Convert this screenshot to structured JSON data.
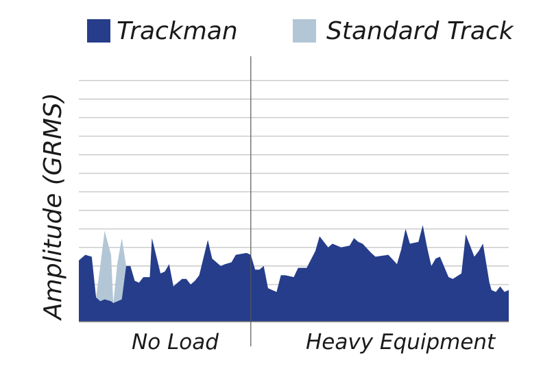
{
  "colors": {
    "trackman": "#253d8a",
    "standard": "#b3c6d6",
    "grid": "#c8c8c8",
    "divider": "#555555"
  },
  "chart_data": {
    "type": "area",
    "title": "",
    "xlabel": "",
    "ylabel": "Amplitude (GRMS)",
    "legend": "top",
    "grid": true,
    "y_gridlines": 13,
    "sections": [
      "No Load",
      "Heavy Equipment"
    ],
    "divider_after_index": 33,
    "series": [
      {
        "name": "Trackman",
        "x": [
          0,
          1.5,
          3,
          4,
          5,
          6,
          7.5,
          8,
          9,
          10,
          11,
          12,
          13,
          14,
          15,
          16.5,
          17,
          19,
          20,
          21,
          22,
          24,
          25,
          26,
          27,
          28,
          30,
          31,
          33,
          34,
          35.5,
          36.5,
          39,
          40,
          41,
          42,
          43,
          44,
          46,
          47,
          48,
          50,
          51,
          53,
          55,
          56,
          57,
          58,
          59,
          61,
          63,
          64,
          65,
          66,
          68,
          69,
          72,
          74,
          75,
          76,
          77,
          79,
          80,
          81,
          82,
          83,
          84,
          86,
          87,
          89,
          90,
          92,
          93,
          94,
          95.5,
          96,
          97,
          98,
          99,
          100
        ],
        "y": [
          3.3,
          3.6,
          3.5,
          1.3,
          1.1,
          1.2,
          1.1,
          1.0,
          1.1,
          1.2,
          3.0,
          3.0,
          2.2,
          2.1,
          2.4,
          2.4,
          4.5,
          2.6,
          2.7,
          3.1,
          1.9,
          2.3,
          2.3,
          2.0,
          2.2,
          2.5,
          4.4,
          3.4,
          3.0,
          3.1,
          3.2,
          3.6,
          3.7,
          3.6,
          2.8,
          2.8,
          3.0,
          1.8,
          1.6,
          2.5,
          2.5,
          2.4,
          2.9,
          2.9,
          3.8,
          4.6,
          4.3,
          4.0,
          4.2,
          4.0,
          4.1,
          4.5,
          4.3,
          4.2,
          3.7,
          3.5,
          3.6,
          3.1,
          3.9,
          5.0,
          4.2,
          4.3,
          5.2,
          4.0,
          3.0,
          3.4,
          3.5,
          2.4,
          2.3,
          2.6,
          4.7,
          3.5,
          3.8,
          4.2,
          2.1,
          1.7,
          1.6,
          1.9,
          1.6,
          1.7
        ],
        "color": "#253d8a"
      },
      {
        "name": "Standard Track",
        "x": [
          0,
          1.5,
          3,
          4,
          5,
          6,
          7.5,
          8,
          9,
          10,
          11,
          12,
          13,
          14,
          15,
          16.5,
          17,
          19,
          20,
          21,
          22,
          24,
          25,
          26,
          27,
          28,
          30,
          31,
          33,
          34,
          35.5,
          36.5,
          39,
          40,
          41,
          42,
          43,
          44,
          46,
          47,
          48,
          50,
          51,
          53,
          55,
          56,
          57,
          58,
          59,
          61,
          63,
          64,
          65,
          66,
          68,
          69,
          72,
          74,
          75,
          76,
          77,
          79,
          80,
          81,
          82,
          83,
          84,
          86,
          87,
          89,
          90,
          92,
          93,
          94,
          95.5,
          96,
          97,
          98,
          99,
          100
        ],
        "y": [
          3.3,
          3.6,
          3.5,
          1.3,
          3.0,
          4.9,
          3.6,
          1.0,
          3.2,
          4.5,
          3.0,
          3.0,
          2.2,
          2.1,
          2.4,
          2.4,
          4.5,
          2.6,
          2.7,
          3.1,
          1.9,
          2.3,
          2.3,
          2.0,
          2.2,
          2.5,
          4.4,
          3.4,
          3.0,
          3.1,
          3.2,
          3.6,
          3.7,
          3.6,
          2.8,
          2.8,
          3.0,
          1.8,
          1.6,
          2.5,
          2.5,
          2.4,
          2.9,
          2.9,
          3.8,
          4.6,
          4.3,
          4.0,
          4.2,
          4.0,
          4.1,
          4.5,
          4.3,
          4.2,
          3.7,
          3.5,
          3.6,
          3.1,
          3.9,
          5.0,
          4.2,
          4.3,
          5.2,
          4.0,
          3.0,
          3.4,
          3.5,
          2.4,
          2.3,
          2.6,
          4.7,
          3.5,
          3.8,
          4.2,
          2.1,
          1.7,
          1.6,
          1.9,
          1.6,
          1.7
        ],
        "color": "#b3c6d6"
      }
    ]
  },
  "legend": {
    "trackman_label": "Trackman",
    "standard_label": "Standard Track"
  },
  "sections": {
    "left_label": "No Load",
    "right_label": "Heavy Equipment"
  },
  "axis": {
    "ylabel": "Amplitude (GRMS)"
  }
}
